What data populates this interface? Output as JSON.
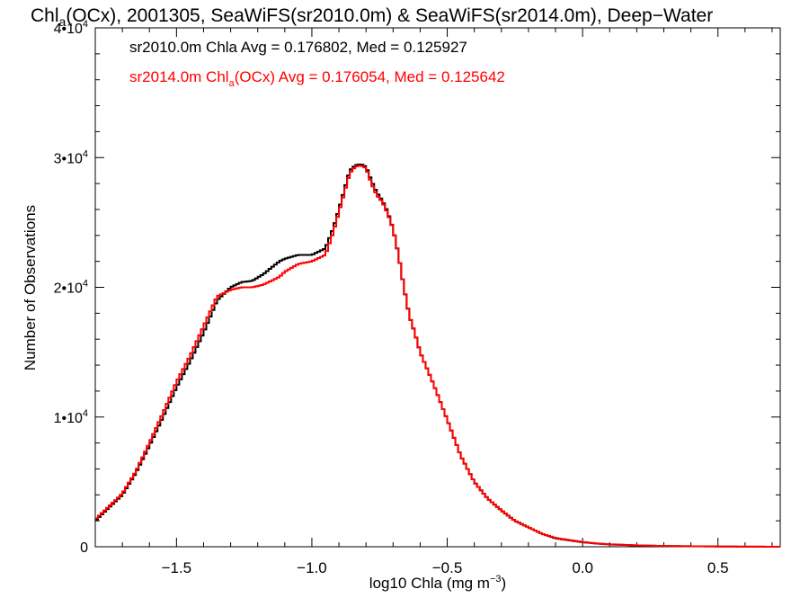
{
  "chart_data": {
    "type": "line",
    "title_parts": [
      "Chl",
      "a",
      "(OCx), 2001305, SeaWiFS(sr2010.0m) & SeaWiFS(sr2014.0m), Deep−Water"
    ],
    "xlabel_parts": [
      "log10 Chla (mg m",
      "−3",
      ")"
    ],
    "ylabel": "Number of Observations",
    "xlim": [
      -1.8,
      0.73
    ],
    "ylim": [
      0,
      40000
    ],
    "x_ticks": [
      {
        "value": -1.5,
        "label": "−1.5"
      },
      {
        "value": -1.0,
        "label": "−1.0"
      },
      {
        "value": -0.5,
        "label": "−0.5"
      },
      {
        "value": 0.0,
        "label": "0.0"
      },
      {
        "value": 0.5,
        "label": "0.5"
      }
    ],
    "y_ticks": [
      {
        "value": 0,
        "label": "0"
      },
      {
        "value": 10000,
        "label": "1•10",
        "exp": "4"
      },
      {
        "value": 20000,
        "label": "2•10",
        "exp": "4"
      },
      {
        "value": 30000,
        "label": "3•10",
        "exp": "4"
      },
      {
        "value": 40000,
        "label": "4•10",
        "exp": "4"
      }
    ],
    "legend_placement": "top-left",
    "series": [
      {
        "legend_parts": [
          "sr2010.0m Chla Avg = 0.176802, Med = 0.125927"
        ],
        "color": "#000000",
        "x": [
          -1.8,
          -1.75,
          -1.7,
          -1.65,
          -1.6,
          -1.55,
          -1.5,
          -1.45,
          -1.4,
          -1.35,
          -1.3,
          -1.26,
          -1.22,
          -1.18,
          -1.15,
          -1.12,
          -1.1,
          -1.05,
          -1.0,
          -0.95,
          -0.92,
          -0.9,
          -0.88,
          -0.86,
          -0.84,
          -0.82,
          -0.8,
          -0.78,
          -0.76,
          -0.74,
          -0.72,
          -0.7,
          -0.68,
          -0.66,
          -0.64,
          -0.62,
          -0.6,
          -0.55,
          -0.5,
          -0.45,
          -0.4,
          -0.35,
          -0.3,
          -0.25,
          -0.2,
          -0.15,
          -0.1,
          -0.05,
          0.0,
          0.05,
          0.1,
          0.2,
          0.3,
          0.4,
          0.5,
          0.6,
          0.73
        ],
        "y": [
          2000,
          3000,
          4000,
          5700,
          7800,
          10000,
          12300,
          14300,
          16500,
          19000,
          20000,
          20400,
          20500,
          21000,
          21500,
          22000,
          22200,
          22500,
          22500,
          23000,
          24600,
          26000,
          27500,
          29000,
          29400,
          29500,
          29300,
          28200,
          27300,
          26700,
          25800,
          24500,
          22500,
          20000,
          17800,
          16500,
          15000,
          12500,
          9800,
          7000,
          5000,
          3700,
          2800,
          2000,
          1500,
          1000,
          650,
          500,
          350,
          250,
          180,
          100,
          60,
          40,
          20,
          10,
          0
        ]
      },
      {
        "legend_parts": [
          "sr2014.0m Chl",
          "a",
          "(OCx) Avg = 0.176054, Med = 0.125642"
        ],
        "color": "#ff0000",
        "x": [
          -1.8,
          -1.75,
          -1.7,
          -1.65,
          -1.6,
          -1.55,
          -1.5,
          -1.45,
          -1.4,
          -1.35,
          -1.3,
          -1.26,
          -1.22,
          -1.18,
          -1.15,
          -1.12,
          -1.1,
          -1.05,
          -1.0,
          -0.95,
          -0.92,
          -0.9,
          -0.88,
          -0.86,
          -0.84,
          -0.82,
          -0.8,
          -0.78,
          -0.76,
          -0.74,
          -0.72,
          -0.7,
          -0.68,
          -0.66,
          -0.64,
          -0.62,
          -0.6,
          -0.55,
          -0.5,
          -0.45,
          -0.4,
          -0.35,
          -0.3,
          -0.25,
          -0.2,
          -0.15,
          -0.1,
          -0.05,
          0.0,
          0.05,
          0.1,
          0.2,
          0.3,
          0.4,
          0.5,
          0.6,
          0.73
        ],
        "y": [
          2100,
          3100,
          4100,
          5800,
          8000,
          10300,
          12700,
          14700,
          17000,
          19300,
          19800,
          20000,
          20000,
          20200,
          20500,
          20800,
          21200,
          21800,
          22000,
          22500,
          24300,
          25800,
          27300,
          28800,
          29300,
          29400,
          29200,
          28000,
          27100,
          26600,
          25700,
          24500,
          22500,
          20000,
          17800,
          16500,
          15000,
          12500,
          9800,
          7000,
          5000,
          3700,
          2800,
          2000,
          1500,
          1000,
          680,
          520,
          370,
          260,
          190,
          110,
          60,
          40,
          20,
          10,
          0
        ]
      }
    ]
  }
}
